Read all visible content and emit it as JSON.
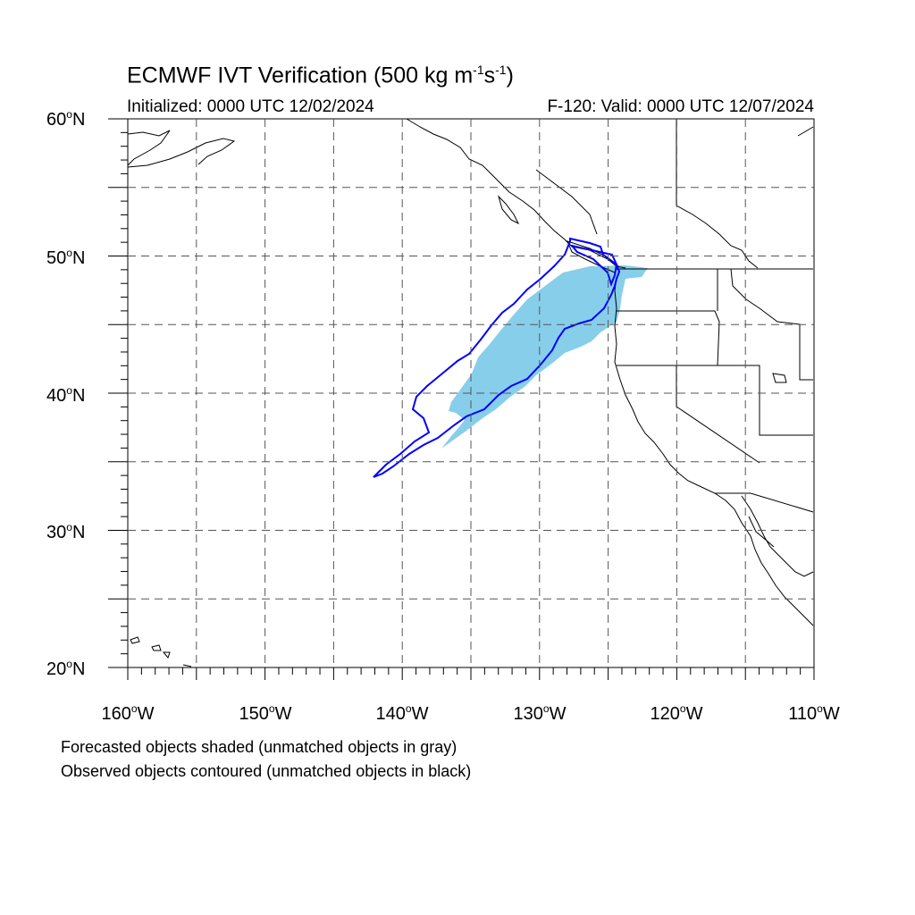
{
  "title": {
    "prefix": "ECMWF IVT Verification (500 kg m",
    "exp1": "-1",
    "mid": "s",
    "exp2": "-1",
    "suffix": ")"
  },
  "initialized": "Initialized: 0000 UTC 12/02/2024",
  "valid": "F-120: Valid: 0000 UTC 12/07/2024",
  "lat_labels": [
    {
      "num": "60",
      "hemi": "N"
    },
    {
      "num": "50",
      "hemi": "N"
    },
    {
      "num": "40",
      "hemi": "N"
    },
    {
      "num": "30",
      "hemi": "N"
    },
    {
      "num": "20",
      "hemi": "N"
    }
  ],
  "lon_labels": [
    {
      "num": "160",
      "hemi": "W"
    },
    {
      "num": "150",
      "hemi": "W"
    },
    {
      "num": "140",
      "hemi": "W"
    },
    {
      "num": "130",
      "hemi": "W"
    },
    {
      "num": "120",
      "hemi": "W"
    },
    {
      "num": "110",
      "hemi": "W"
    }
  ],
  "captions": [
    "Forecasted objects shaded (unmatched objects in gray)",
    "Observed objects contoured (unmatched objects in black)"
  ],
  "colors": {
    "forecast_fill": "#87ceeb",
    "observed_contour": "#0000ff",
    "grid": "#555555",
    "coast": "#000000"
  },
  "map": {
    "lon_range": [
      -160,
      -110
    ],
    "lat_range": [
      20,
      60
    ]
  }
}
